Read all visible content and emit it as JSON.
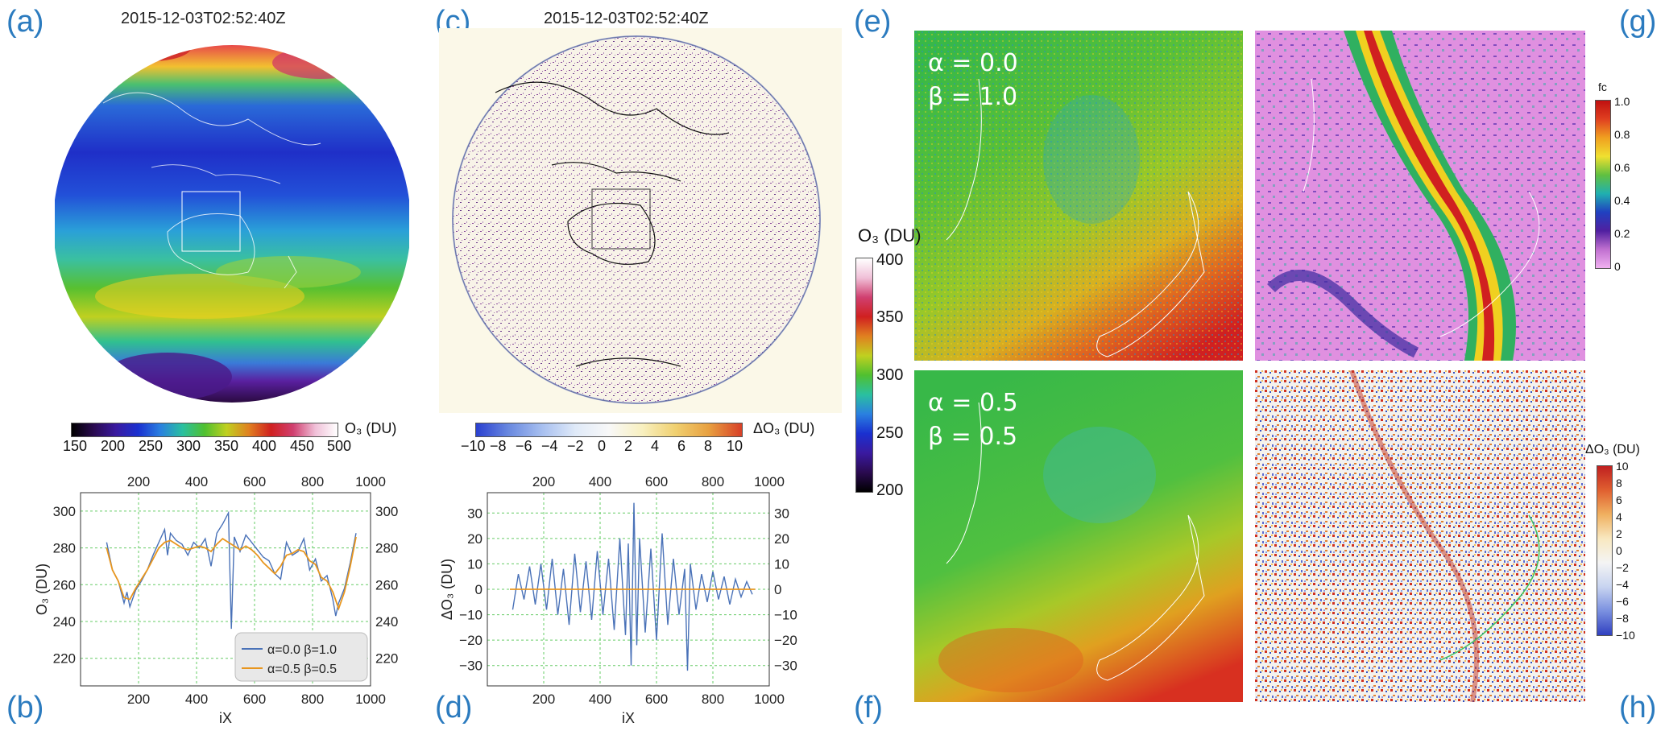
{
  "panels": {
    "a": {
      "letter": "(a)",
      "timestamp": "2015-12-03T02:52:40Z",
      "colorbar": {
        "ticks": [
          "150",
          "200",
          "250",
          "300",
          "350",
          "400",
          "450",
          "500"
        ],
        "label": "O₃ (DU)"
      }
    },
    "b": {
      "letter": "(b)"
    },
    "c": {
      "letter": "(c)",
      "timestamp": "2015-12-03T02:52:40Z",
      "colorbar": {
        "ticks": [
          "−10",
          "−8",
          "−6",
          "−4",
          "−2",
          "0",
          "2",
          "4",
          "6",
          "8",
          "10"
        ],
        "label": "ΔO₃ (DU)"
      }
    },
    "d": {
      "letter": "(d)"
    },
    "e": {
      "letter": "(e)",
      "alpha": "α = 0.0",
      "beta": "β = 1.0"
    },
    "f": {
      "letter": "(f)",
      "alpha": "α = 0.5",
      "beta": "β = 0.5"
    },
    "g": {
      "letter": "(g)",
      "colorbar": {
        "label": "fc",
        "ticks": [
          "1.0",
          "0.8",
          "0.6",
          "0.4",
          "0.2",
          "0"
        ]
      }
    },
    "h": {
      "letter": "(h)",
      "colorbar": {
        "label": "ΔO₃ (DU)",
        "ticks": [
          "10",
          "8",
          "6",
          "4",
          "2",
          "0",
          "−2",
          "−4",
          "−6",
          "−8",
          "−10"
        ]
      }
    }
  },
  "center_colorbar": {
    "label": "O₃ (DU)",
    "ticks": [
      "400",
      "350",
      "300",
      "250",
      "200"
    ]
  },
  "chart_data": [
    {
      "type": "line",
      "panel": "b",
      "xlabel": "iX",
      "ylabel": "O₃ (DU)",
      "xlim": [
        0,
        1000
      ],
      "ylim": [
        205,
        310
      ],
      "x_ticks": [
        "200",
        "400",
        "600",
        "800",
        "1000"
      ],
      "y_ticks": [
        "220",
        "240",
        "260",
        "280",
        "300"
      ],
      "grid": true,
      "legend": "bottom-right",
      "series": [
        {
          "name": "α=0.0 β=1.0",
          "color": "#4a72b8",
          "x": [
            90,
            110,
            130,
            150,
            160,
            170,
            190,
            210,
            230,
            250,
            270,
            290,
            300,
            310,
            330,
            350,
            370,
            390,
            410,
            430,
            450,
            470,
            490,
            510,
            520,
            530,
            550,
            570,
            590,
            610,
            630,
            650,
            670,
            690,
            710,
            730,
            750,
            770,
            790,
            810,
            830,
            850,
            870,
            880,
            890,
            910,
            930,
            950
          ],
          "y": [
            283,
            268,
            262,
            250,
            256,
            248,
            257,
            262,
            268,
            276,
            283,
            290,
            276,
            288,
            284,
            282,
            276,
            283,
            280,
            285,
            270,
            288,
            293,
            299,
            236,
            286,
            278,
            287,
            283,
            279,
            275,
            273,
            266,
            263,
            283,
            276,
            278,
            285,
            268,
            274,
            262,
            265,
            252,
            243,
            250,
            258,
            272,
            288
          ]
        },
        {
          "name": "α=0.5 β=0.5",
          "color": "#e8961e",
          "x": [
            90,
            110,
            130,
            150,
            170,
            190,
            210,
            230,
            250,
            270,
            290,
            310,
            330,
            350,
            370,
            390,
            410,
            430,
            450,
            470,
            490,
            510,
            530,
            550,
            570,
            590,
            610,
            630,
            650,
            670,
            690,
            710,
            730,
            750,
            770,
            790,
            810,
            830,
            850,
            870,
            890,
            910,
            930,
            950
          ],
          "y": [
            280,
            268,
            262,
            253,
            252,
            258,
            263,
            268,
            274,
            280,
            283,
            284,
            282,
            280,
            279,
            280,
            281,
            280,
            278,
            282,
            285,
            283,
            281,
            279,
            281,
            279,
            276,
            272,
            269,
            266,
            270,
            276,
            277,
            279,
            278,
            273,
            271,
            264,
            262,
            256,
            247,
            256,
            270,
            286
          ]
        }
      ]
    },
    {
      "type": "line",
      "panel": "d",
      "xlabel": "iX",
      "ylabel": "ΔO₃ (DU)",
      "xlim": [
        0,
        1000
      ],
      "ylim": [
        -38,
        38
      ],
      "x_ticks": [
        "200",
        "400",
        "600",
        "800",
        "1000"
      ],
      "y_ticks": [
        "30",
        "20",
        "10",
        "0",
        "−10",
        "−20",
        "−30"
      ],
      "grid": true,
      "series": [
        {
          "name": "",
          "color": "#4a72b8",
          "x": [
            90,
            110,
            130,
            150,
            170,
            190,
            210,
            230,
            250,
            270,
            290,
            310,
            330,
            350,
            370,
            390,
            410,
            430,
            450,
            470,
            490,
            500,
            510,
            520,
            530,
            540,
            560,
            580,
            600,
            620,
            640,
            660,
            680,
            700,
            710,
            720,
            740,
            760,
            780,
            800,
            820,
            840,
            860,
            880,
            900,
            920,
            940
          ],
          "y": [
            -8,
            6,
            -4,
            9,
            -6,
            10,
            -8,
            12,
            -10,
            8,
            -14,
            14,
            -9,
            11,
            -12,
            15,
            -10,
            12,
            -16,
            20,
            -18,
            18,
            -30,
            34,
            -22,
            20,
            -17,
            16,
            -20,
            22,
            -14,
            12,
            -10,
            8,
            -32,
            10,
            -8,
            6,
            -5,
            7,
            -4,
            5,
            -6,
            4,
            -3,
            3,
            -2
          ]
        },
        {
          "name": "",
          "color": "#e8961e",
          "x": [
            80,
            950
          ],
          "y": [
            0,
            0
          ]
        }
      ]
    }
  ]
}
